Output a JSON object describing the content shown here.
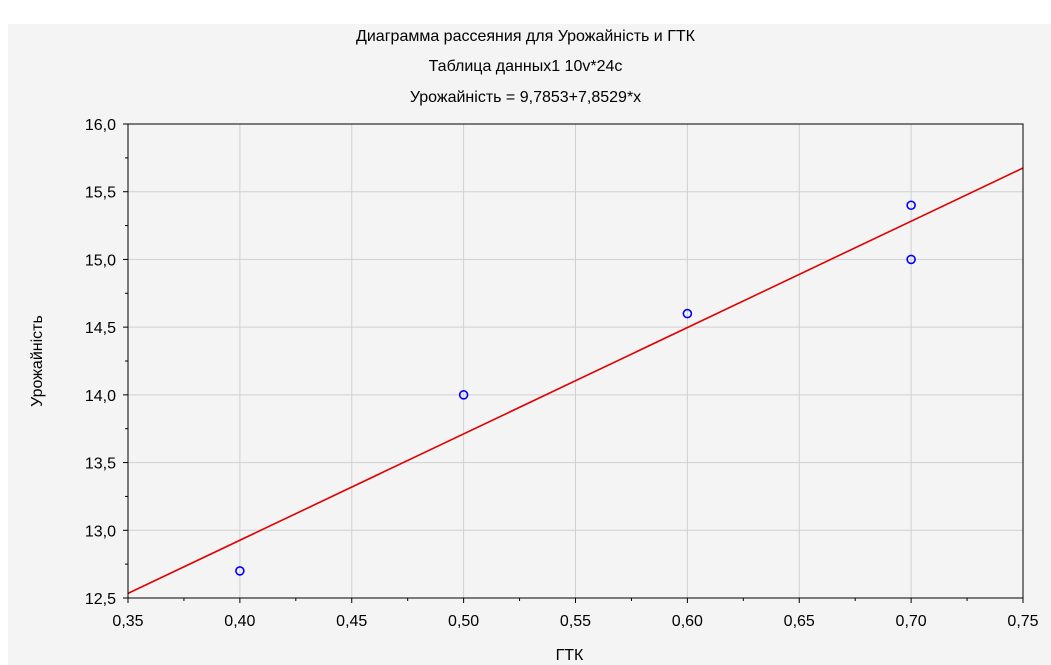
{
  "chart_data": {
    "type": "scatter",
    "title": "Диаграмма рассеяния для Урожайність и ГТК",
    "subtitle": "Таблица данных1 10v*24c",
    "equation": "Урожайність = 9,7853+7,8529*x",
    "xlabel": "ГТК",
    "ylabel": "Урожайність",
    "xlim": [
      0.35,
      0.75
    ],
    "ylim": [
      12.5,
      16.0
    ],
    "x_ticks": [
      "0,35",
      "0,40",
      "0,45",
      "0,50",
      "0,55",
      "0,60",
      "0,65",
      "0,70",
      "0,75"
    ],
    "y_ticks": [
      "12,5",
      "13,0",
      "13,5",
      "14,0",
      "14,5",
      "15,0",
      "15,5",
      "16,0"
    ],
    "grid": true,
    "points": [
      {
        "x": 0.4,
        "y": 12.7
      },
      {
        "x": 0.5,
        "y": 14.0
      },
      {
        "x": 0.6,
        "y": 14.6
      },
      {
        "x": 0.7,
        "y": 15.0
      },
      {
        "x": 0.7,
        "y": 15.4
      }
    ],
    "fit_line": {
      "intercept": 9.7853,
      "slope": 7.8529
    },
    "colors": {
      "points": "#0000ff",
      "fit_line": "#e00000",
      "grid": "#d0d0d0",
      "background": "#f4f4f4"
    }
  }
}
